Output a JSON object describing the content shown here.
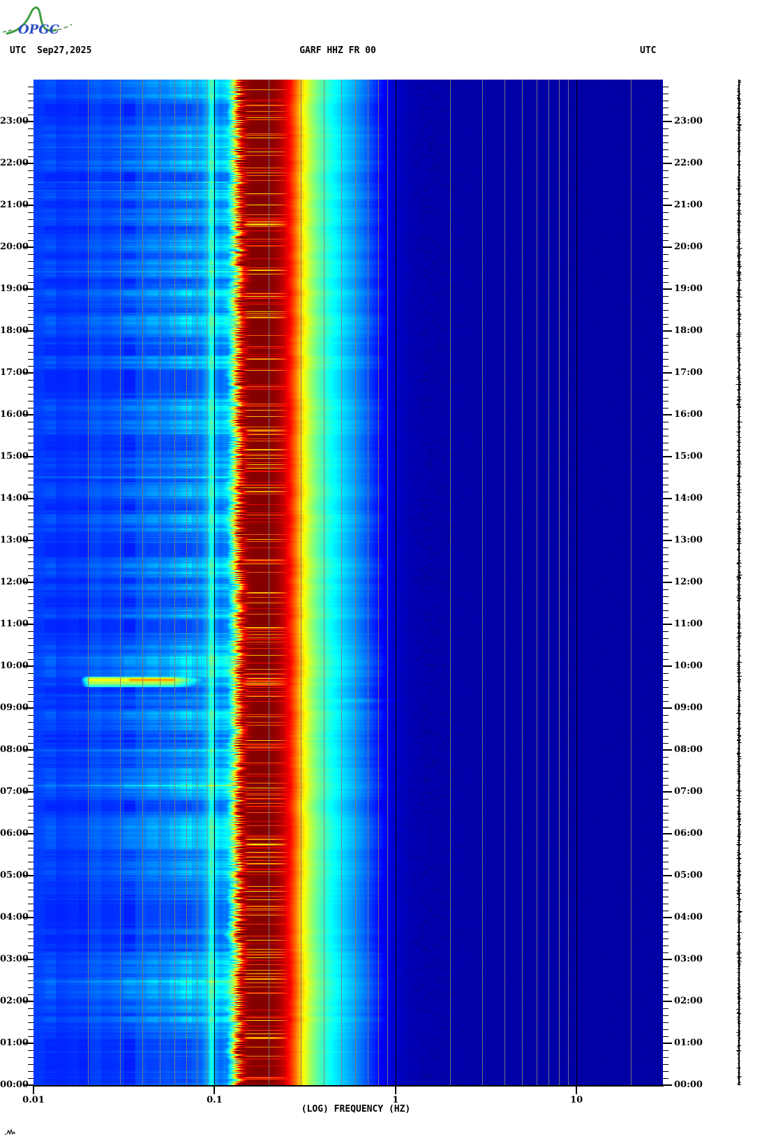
{
  "logo": {
    "text": "OPGC",
    "text_color": "#2e4fc4",
    "curve_color": "#3f9c3f"
  },
  "header": {
    "utc_left": "UTC",
    "date": "Sep27,2025",
    "title": "GARF HHZ FR 00",
    "utc_right": "UTC"
  },
  "axis": {
    "x_title": "(LOG) FREQUENCY (HZ)",
    "x_tick_labels": [
      "0.01",
      "0.1",
      "1",
      "10"
    ],
    "x_tick_values": [
      0.01,
      0.1,
      1,
      10
    ],
    "y_tick_labels": [
      "23:00",
      "22:00",
      "21:00",
      "20:00",
      "19:00",
      "18:00",
      "17:00",
      "16:00",
      "15:00",
      "14:00",
      "13:00",
      "12:00",
      "11:00",
      "10:00",
      "09:00",
      "08:00",
      "07:00",
      "06:00",
      "05:00",
      "04:00",
      "03:00",
      "02:00",
      "01:00",
      "00:00"
    ]
  },
  "icons": {
    "corner_mark": "tiny-seismogram-zigzag",
    "logo_curve": "green-mountain-curve"
  },
  "chart_data": {
    "type": "heatmap",
    "subtype": "spectrogram",
    "title": "GARF HHZ FR 00",
    "date_utc": "Sep27,2025",
    "xlabel": "(LOG) FREQUENCY (HZ)",
    "x_scale": "log",
    "x_range_hz": [
      0.01,
      30
    ],
    "x_ticks_hz": [
      0.01,
      0.1,
      1,
      10
    ],
    "ylabel": "UTC",
    "y_range": [
      "00:00",
      "24:00"
    ],
    "y_major_step_hours": 1,
    "y_minor_step_minutes": 10,
    "grid": {
      "minor_color": "#7d7d7d",
      "major_color": "#000000",
      "major_lines_hz": [
        0.1,
        1,
        10
      ]
    },
    "colormap": "jet",
    "colors": {
      "peak_band": "#8a0000",
      "high_freq_background": "#0000a4",
      "low_freq_background": "#0038ff"
    },
    "spectral_profile": {
      "freq_hz": [
        0.01,
        0.016,
        0.025,
        0.04,
        0.055,
        0.07,
        0.085,
        0.092,
        0.096,
        0.1,
        0.107,
        0.118,
        0.126,
        0.133,
        0.14,
        0.15,
        0.16,
        0.2,
        0.22,
        0.24,
        0.26,
        0.28,
        0.3,
        0.33,
        0.36,
        0.4,
        0.45,
        0.5,
        0.57,
        0.65,
        0.75,
        0.85,
        1.0,
        1.2,
        1.5,
        2.0,
        3.0,
        10.0,
        30.0
      ],
      "relative_power": [
        0.175,
        0.185,
        0.2,
        0.22,
        0.245,
        0.265,
        0.285,
        0.33,
        0.45,
        0.36,
        0.3,
        0.32,
        0.45,
        0.62,
        0.85,
        0.97,
        0.995,
        0.995,
        0.975,
        0.935,
        0.87,
        0.78,
        0.68,
        0.575,
        0.5,
        0.44,
        0.385,
        0.345,
        0.3,
        0.25,
        0.185,
        0.125,
        0.07,
        0.052,
        0.045,
        0.042,
        0.04,
        0.037,
        0.036
      ]
    },
    "features": [
      {
        "name": "microseism-peak-band",
        "freq_hz": [
          0.13,
          0.22
        ],
        "time_utc": [
          "00:00",
          "24:00"
        ],
        "description": "persistent saturated dark-red band with intermittent bright red/orange horizontal streaks"
      },
      {
        "name": "narrow-green-stripe",
        "freq_hz": [
          0.092,
          0.1
        ],
        "description": "thin yellow-green column just left of the 0.1 Hz gridline"
      },
      {
        "name": "transient-event",
        "time_utc": "09:32-09:45",
        "freq_hz": [
          0.02,
          0.11
        ],
        "description": "bright yellow/orange horizontal streak across the long-period band"
      },
      {
        "name": "striped-low-freq-band",
        "freq_hz": [
          0.01,
          0.12
        ],
        "description": "blue-to-cyan band with strong horizontal time striping"
      },
      {
        "name": "quiet-high-freq",
        "freq_hz": [
          1,
          30
        ],
        "description": "uniform navy background with faint darker mottling between 1 and 3 Hz"
      }
    ],
    "side_panel": {
      "type": "seismogram-trace",
      "color": "#000000",
      "position": "right of spectrogram, full height"
    }
  }
}
